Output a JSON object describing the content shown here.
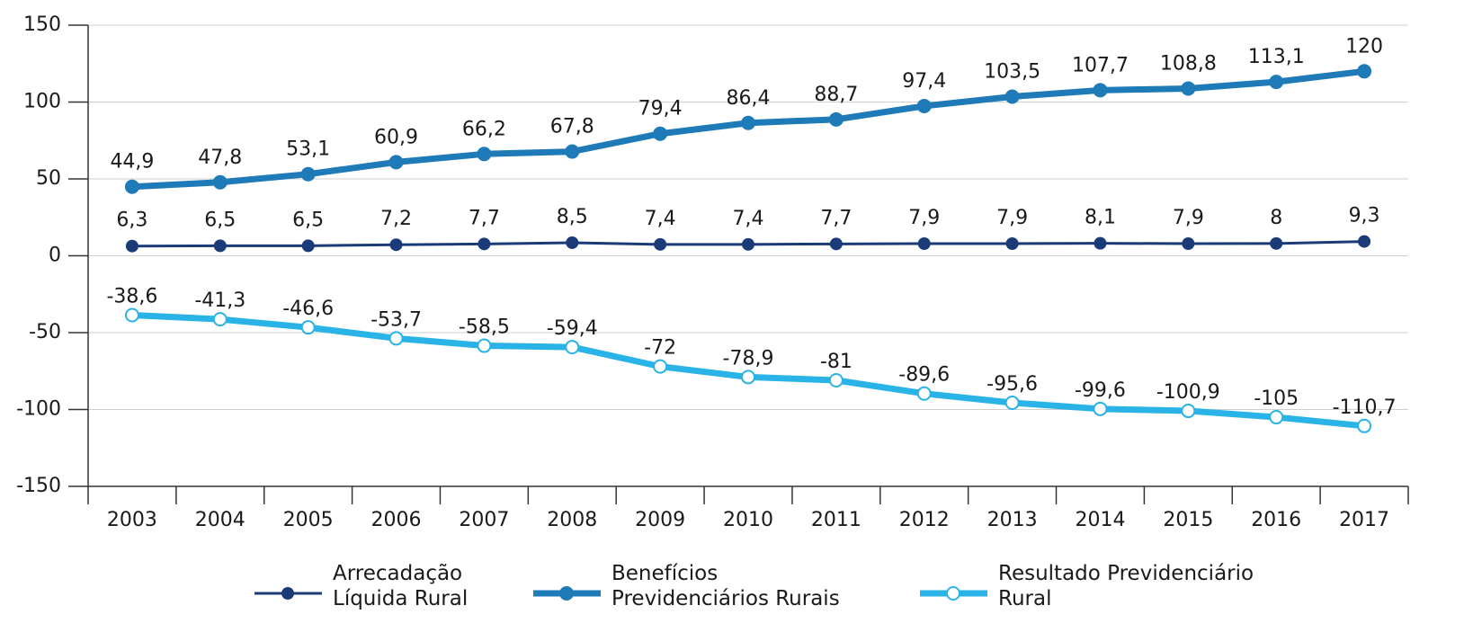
{
  "chart_data": {
    "type": "line",
    "categories": [
      "2003",
      "2004",
      "2005",
      "2006",
      "2007",
      "2008",
      "2009",
      "2010",
      "2011",
      "2012",
      "2013",
      "2014",
      "2015",
      "2016",
      "2017"
    ],
    "ylim": [
      -150,
      150
    ],
    "yticks": [
      150,
      100,
      50,
      0,
      -50,
      -100,
      -150
    ],
    "grid": true,
    "legend": "bottom",
    "series": [
      {
        "name": "Arrecadação Líquida Rural",
        "color": "#1b3a78",
        "values": [
          6.3,
          6.5,
          6.5,
          7.2,
          7.7,
          8.5,
          7.4,
          7.4,
          7.7,
          7.9,
          7.9,
          8.1,
          7.9,
          8,
          9.3
        ],
        "value_labels": [
          "6,3",
          "6,5",
          "6,5",
          "7,2",
          "7,7",
          "8,5",
          "7,4",
          "7,4",
          "7,7",
          "7,9",
          "7,9",
          "8,1",
          "7,9",
          "8",
          "9,3"
        ]
      },
      {
        "name": "Benefícios Previdenciários Rurais",
        "color": "#1f7ab8",
        "values": [
          44.9,
          47.8,
          53.1,
          60.9,
          66.2,
          67.8,
          79.4,
          86.4,
          88.7,
          97.4,
          103.5,
          107.7,
          108.8,
          113.1,
          120
        ],
        "value_labels": [
          "44,9",
          "47,8",
          "53,1",
          "60,9",
          "66,2",
          "67,8",
          "79,4",
          "86,4",
          "88,7",
          "97,4",
          "103,5",
          "107,7",
          "108,8",
          "113,1",
          "120"
        ]
      },
      {
        "name": "Resultado Previdenciário Rural",
        "color": "#29b3e6",
        "values": [
          -38.6,
          -41.3,
          -46.6,
          -53.7,
          -58.5,
          -59.4,
          -72,
          -78.9,
          -81,
          -89.6,
          -95.6,
          -99.6,
          -100.9,
          -105,
          -110.7
        ],
        "value_labels": [
          "-38,6",
          "-41,3",
          "-46,6",
          "-53,7",
          "-58,5",
          "-59,4",
          "-72",
          "-78,9",
          "-81",
          "-89,6",
          "-95,6",
          "-99,6",
          "-100,9",
          "-105",
          "-110,7"
        ]
      }
    ]
  }
}
